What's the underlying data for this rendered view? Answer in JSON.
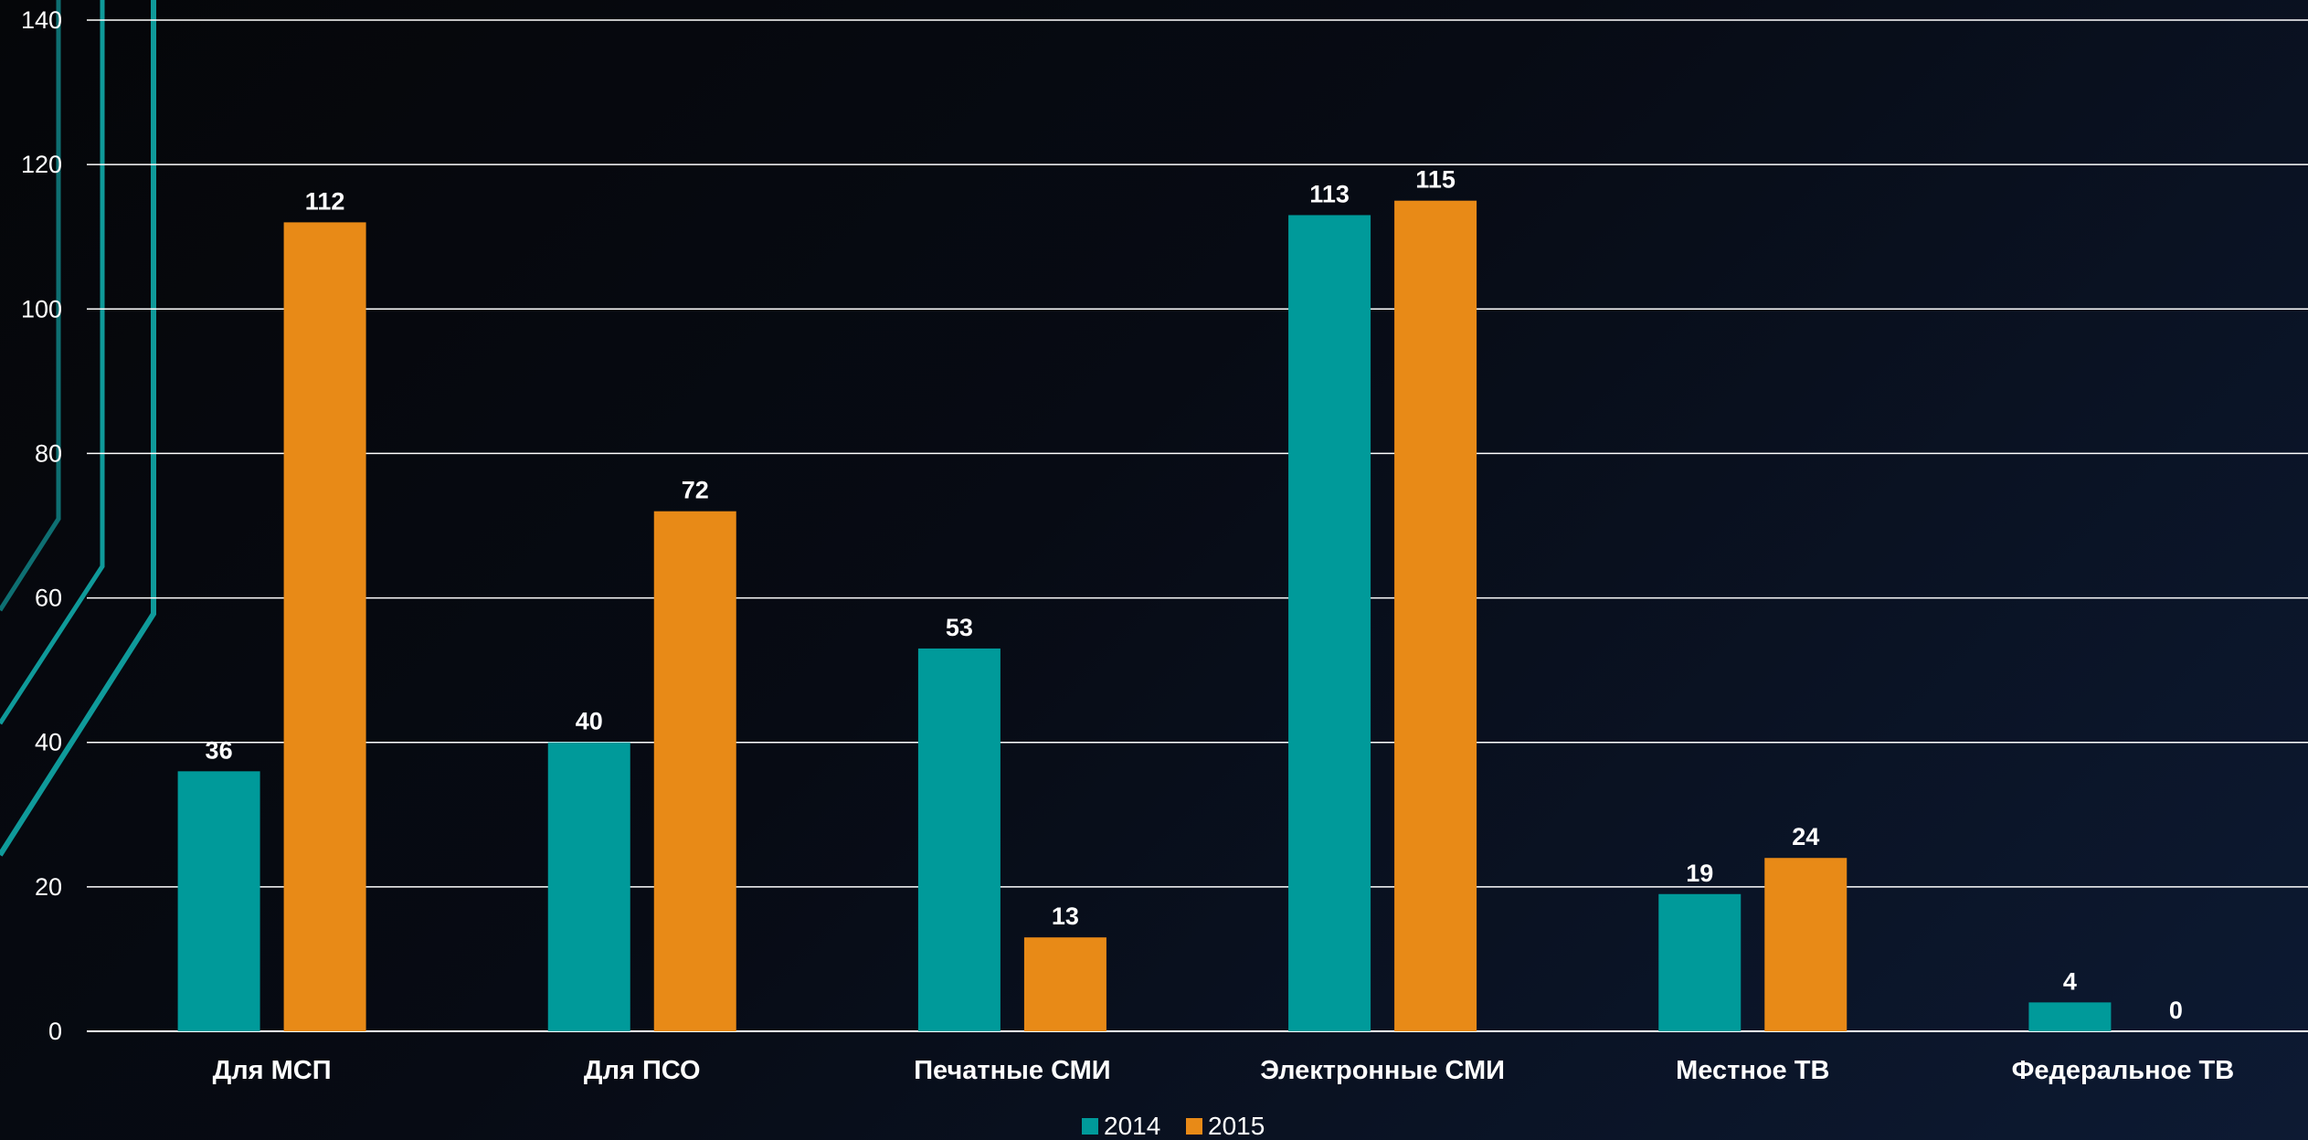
{
  "chart_data": {
    "type": "bar",
    "categories": [
      "Для МСП",
      "Для ПСО",
      "Печатные СМИ",
      "Электронные СМИ",
      "Местное ТВ",
      "Федеральное ТВ"
    ],
    "series": [
      {
        "name": "2014",
        "color": "#009a9a",
        "values": [
          36,
          40,
          53,
          113,
          19,
          4
        ]
      },
      {
        "name": "2015",
        "color": "#e88a17",
        "values": [
          112,
          72,
          13,
          115,
          24,
          0
        ]
      }
    ],
    "y_ticks": [
      "0",
      "20",
      "40",
      "60",
      "80",
      "100",
      "120",
      "140"
    ],
    "ylim": [
      0,
      140
    ],
    "grid": true,
    "legend_position": "bottom-center",
    "title": "",
    "xlabel": "",
    "ylabel": ""
  },
  "theme": {
    "gridline_color": "#ffffff",
    "text_color": "#ffffff",
    "decor_color": "#0f9a9a"
  }
}
